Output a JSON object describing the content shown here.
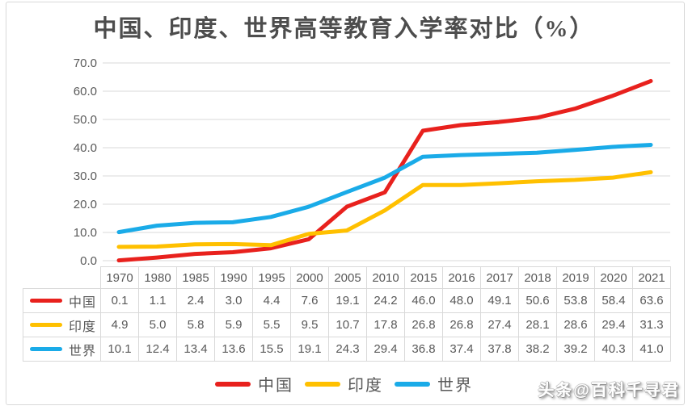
{
  "title": "中国、印度、世界高等教育入学率对比（%）",
  "watermark": "头条@百科千寻君",
  "colors": {
    "china_line": "#e8211d",
    "india_line": "#ffc000",
    "world_line": "#1aabe8",
    "grid": "#d9d9d9",
    "table_border": "#d9d9d9",
    "axis_text": "#595959",
    "title_text": "#4d4d4d"
  },
  "chart_data": {
    "type": "line",
    "title": "中国、印度、世界高等教育入学率对比（%）",
    "categories": [
      "1970",
      "1980",
      "1985",
      "1990",
      "1995",
      "2000",
      "2005",
      "2010",
      "2015",
      "2016",
      "2017",
      "2018",
      "2019",
      "2020",
      "2021"
    ],
    "series": [
      {
        "name": "中国",
        "color": "#e8211d",
        "values": [
          "0.1",
          "1.1",
          "2.4",
          "3.0",
          "4.4",
          "7.6",
          "19.1",
          "24.2",
          "46.0",
          "48.0",
          "49.1",
          "50.6",
          "53.8",
          "58.4",
          "63.6"
        ]
      },
      {
        "name": "印度",
        "color": "#ffc000",
        "values": [
          "4.9",
          "5.0",
          "5.8",
          "5.9",
          "5.5",
          "9.5",
          "10.7",
          "17.8",
          "26.8",
          "26.8",
          "27.4",
          "28.1",
          "28.6",
          "29.4",
          "31.3"
        ]
      },
      {
        "name": "世界",
        "color": "#1aabe8",
        "values": [
          "10.1",
          "12.4",
          "13.4",
          "13.6",
          "15.5",
          "19.1",
          "24.3",
          "29.4",
          "36.8",
          "37.4",
          "37.8",
          "38.2",
          "39.2",
          "40.3",
          "41.0"
        ]
      }
    ],
    "xlabel": "",
    "ylabel": "",
    "ylim": [
      0,
      70
    ],
    "yticks": [
      "70.0",
      "60.0",
      "50.0",
      "40.0",
      "30.0",
      "20.0",
      "10.0",
      "0.0"
    ],
    "grid": true,
    "legend_position": "bottom",
    "data_table_shown": true
  }
}
